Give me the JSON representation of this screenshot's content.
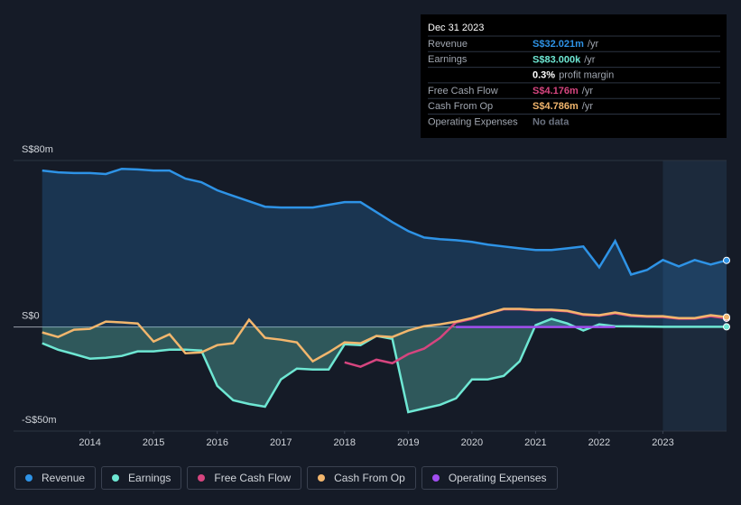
{
  "chart_data": {
    "type": "line",
    "x": [
      2013.25,
      2013.5,
      2013.75,
      2014,
      2014.25,
      2014.5,
      2014.75,
      2015,
      2015.25,
      2015.5,
      2015.75,
      2016,
      2016.25,
      2016.5,
      2016.75,
      2017,
      2017.25,
      2017.5,
      2017.75,
      2018,
      2018.25,
      2018.5,
      2018.75,
      2019,
      2019.25,
      2019.5,
      2019.75,
      2020,
      2020.25,
      2020.5,
      2020.75,
      2021,
      2021.25,
      2021.5,
      2021.75,
      2022,
      2022.25,
      2022.5,
      2022.75,
      2023,
      2023.25,
      2023.5,
      2023.75,
      2024
    ],
    "xlim": [
      2012.8,
      2024.0
    ],
    "xticks": [
      2014,
      2015,
      2016,
      2017,
      2018,
      2019,
      2020,
      2021,
      2022,
      2023
    ],
    "ylim": [
      -50,
      80
    ],
    "yticks": [
      {
        "value": -50,
        "label": "-S$50m"
      },
      {
        "value": 0,
        "label": "S$0"
      },
      {
        "value": 80,
        "label": "S$80m"
      }
    ],
    "series": [
      {
        "name": "Revenue",
        "color": "#2e93e6",
        "fill": true,
        "values": [
          75.2,
          74.3,
          74,
          74,
          73.5,
          76,
          75.7,
          75.2,
          75.2,
          71.3,
          69.6,
          65.7,
          63,
          60.4,
          57.8,
          57.4,
          57.4,
          57.4,
          58.7,
          60,
          60,
          55.2,
          50.4,
          46.1,
          43,
          42.2,
          41.7,
          40.9,
          39.6,
          38.7,
          37.8,
          37,
          37,
          37.8,
          38.7,
          28.7,
          41.3,
          25.2,
          27.4,
          32.2,
          29.1,
          32.2,
          30,
          32.021
        ]
      },
      {
        "name": "Earnings",
        "color": "#6ee7d3",
        "fill": true,
        "values": [
          -7.8,
          -10.9,
          -13,
          -15.2,
          -14.8,
          -13.9,
          -11.7,
          -11.7,
          -10.9,
          -10.9,
          -11.3,
          -28.3,
          -35.2,
          -37,
          -38.3,
          -25.2,
          -20,
          -20.4,
          -20.4,
          -8.3,
          -8.7,
          -4.3,
          -5.7,
          -40.9,
          -39.1,
          -37.4,
          -34.3,
          -25.2,
          -25.2,
          -23.5,
          -16.5,
          0.9,
          3.9,
          1.7,
          -1.7,
          1.3,
          0.4,
          0.3,
          0.2,
          0.1,
          0.1,
          0.1,
          0.1,
          0.083
        ]
      },
      {
        "name": "Free Cash Flow",
        "color": "#d6457f",
        "fill": false,
        "values": [
          null,
          null,
          null,
          null,
          null,
          null,
          null,
          null,
          null,
          null,
          null,
          null,
          null,
          null,
          null,
          null,
          null,
          null,
          null,
          -17,
          -19.1,
          -15.7,
          -17.4,
          -13,
          -10.4,
          -5.2,
          2.2,
          3.9,
          6.5,
          8.5,
          8.5,
          8,
          8,
          7.5,
          5.8,
          5.4,
          6.6,
          5.3,
          4.9,
          4.8,
          4,
          4,
          5.2,
          4.176
        ]
      },
      {
        "name": "Cash From Op",
        "color": "#f2b66d",
        "fill": false,
        "values": [
          -2.6,
          -4.8,
          -1.3,
          -0.9,
          2.6,
          2.2,
          1.7,
          -7,
          -3.5,
          -12.6,
          -12.2,
          -8.7,
          -7.8,
          3.5,
          -5.2,
          -6.1,
          -7.4,
          -16.5,
          -12.2,
          -7.4,
          -7.8,
          -4.3,
          -4.8,
          -1.7,
          0.4,
          1.3,
          2.6,
          4.3,
          6.5,
          8.7,
          8.7,
          8.3,
          8.3,
          7.8,
          6.1,
          5.7,
          7,
          5.7,
          5.2,
          5.2,
          4.3,
          4.3,
          5.7,
          4.786
        ]
      },
      {
        "name": "Operating Expenses",
        "color": "#a24ef0",
        "fill": false,
        "values": [
          null,
          null,
          null,
          null,
          null,
          null,
          null,
          null,
          null,
          null,
          null,
          null,
          null,
          null,
          null,
          null,
          null,
          null,
          null,
          null,
          null,
          null,
          null,
          null,
          null,
          null,
          0,
          0,
          0,
          0,
          0,
          0,
          0,
          0,
          0,
          0,
          0,
          null,
          null,
          null,
          null,
          null,
          null,
          null
        ]
      }
    ],
    "tooltip": {
      "title": "Dec 31 2023",
      "rows": [
        {
          "label": "Revenue",
          "value": "S$32.021m",
          "suffix": "/yr",
          "color": "#2e93e6"
        },
        {
          "label": "Earnings",
          "value": "S$83.000k",
          "suffix": "/yr",
          "color": "#6ee7d3"
        },
        {
          "value": "0.3%",
          "suffix": "profit margin",
          "color": "#ffffff"
        },
        {
          "label": "Free Cash Flow",
          "value": "S$4.176m",
          "suffix": "/yr",
          "color": "#d6457f"
        },
        {
          "label": "Cash From Op",
          "value": "S$4.786m",
          "suffix": "/yr",
          "color": "#f2b66d"
        },
        {
          "label": "Operating Expenses",
          "value": "No data",
          "color": "#6b7280"
        }
      ]
    }
  }
}
